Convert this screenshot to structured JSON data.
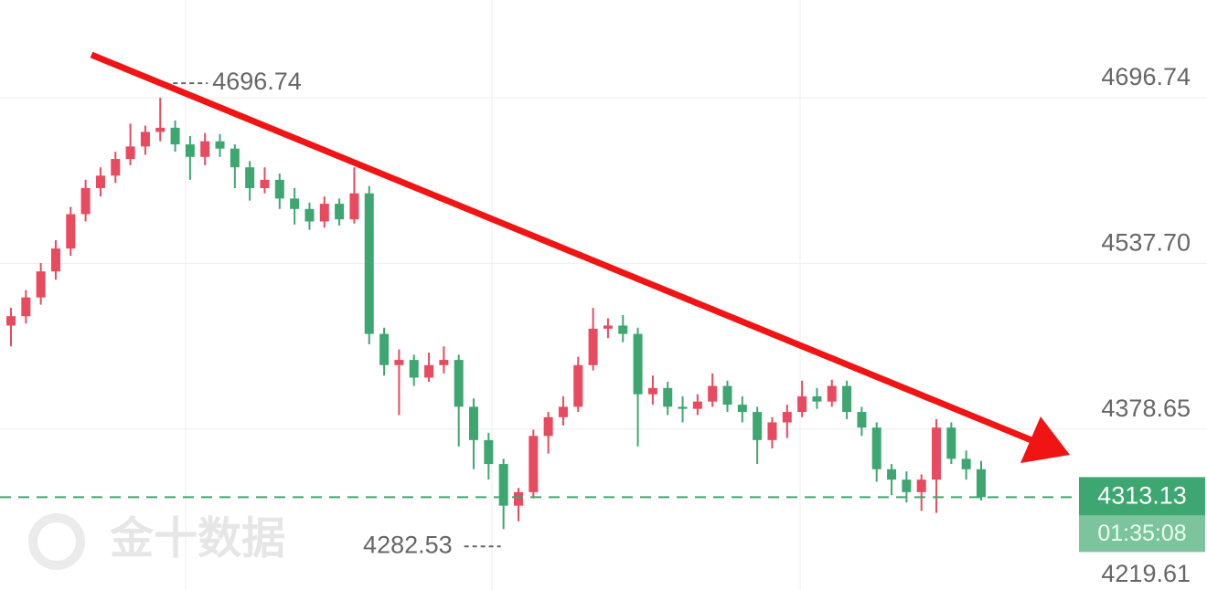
{
  "chart_data": {
    "type": "candlestick",
    "watermark": "金十数据",
    "up_color": "#e84a5f",
    "down_color": "#3ea771",
    "ylim": [
      4224.0,
      4790.7
    ],
    "yticks": [
      4696.74,
      {
        "value": 4537.7,
        "label": "4537.70"
      },
      4378.65,
      4219.61
    ],
    "grid": true,
    "max_marker": 4696.74,
    "min_marker": 4282.53,
    "last_price": 4313.13,
    "countdown": "01:35:08",
    "open": [
      4478,
      4487,
      4505,
      4530,
      4552,
      4585,
      4610,
      4622,
      4638,
      4650,
      4664,
      4668,
      4652,
      4640,
      4655,
      4648,
      4630,
      4610,
      4618,
      4600,
      4590,
      4578,
      4595,
      4580,
      4605,
      4470,
      4440,
      4445,
      4428,
      4440,
      4445,
      4400,
      4368,
      4345,
      4305,
      4318,
      4372,
      4390,
      4400,
      4440,
      4475,
      4478,
      4470,
      4412,
      4418,
      4400,
      4398,
      4405,
      4420,
      4402,
      4395,
      4368,
      4385,
      4395,
      4410,
      4405,
      4420,
      4395,
      4380,
      4340,
      4330,
      4318,
      4330,
      4380,
      4350,
      4340
    ],
    "high": [
      4495,
      4512,
      4538,
      4560,
      4592,
      4618,
      4630,
      4645,
      4672,
      4670,
      4696.74,
      4675,
      4660,
      4663,
      4662,
      4652,
      4636,
      4630,
      4624,
      4610,
      4596,
      4602,
      4600,
      4630,
      4612,
      4476,
      4455,
      4450,
      4452,
      4458,
      4450,
      4408,
      4375,
      4350,
      4322,
      4378,
      4395,
      4410,
      4448,
      4495,
      4485,
      4488,
      4476,
      4430,
      4424,
      4410,
      4412,
      4432,
      4425,
      4410,
      4400,
      4390,
      4402,
      4425,
      4418,
      4426,
      4425,
      4400,
      4385,
      4345,
      4338,
      4335,
      4388,
      4385,
      4358,
      4348
    ],
    "low": [
      4458,
      4480,
      4498,
      4522,
      4545,
      4578,
      4602,
      4615,
      4632,
      4642,
      4655,
      4645,
      4618,
      4632,
      4640,
      4610,
      4598,
      4605,
      4590,
      4575,
      4570,
      4572,
      4574,
      4576,
      4460,
      4430,
      4392,
      4420,
      4424,
      4432,
      4362,
      4340,
      4330,
      4282.53,
      4290,
      4312,
      4355,
      4382,
      4395,
      4435,
      4466,
      4462,
      4362,
      4402,
      4392,
      4385,
      4392,
      4400,
      4395,
      4385,
      4345,
      4360,
      4370,
      4390,
      4398,
      4400,
      4388,
      4372,
      4328,
      4315,
      4308,
      4300,
      4298,
      4345,
      4330,
      4310
    ],
    "close": [
      4487,
      4505,
      4530,
      4552,
      4585,
      4610,
      4622,
      4638,
      4650,
      4664,
      4668,
      4652,
      4640,
      4655,
      4648,
      4630,
      4610,
      4618,
      4600,
      4590,
      4578,
      4595,
      4580,
      4605,
      4470,
      4440,
      4445,
      4428,
      4440,
      4445,
      4400,
      4368,
      4345,
      4305,
      4318,
      4372,
      4390,
      4400,
      4440,
      4475,
      4478,
      4470,
      4412,
      4418,
      4400,
      4398,
      4405,
      4420,
      4402,
      4395,
      4368,
      4385,
      4395,
      4410,
      4405,
      4420,
      4395,
      4380,
      4340,
      4330,
      4318,
      4330,
      4380,
      4350,
      4340,
      4313.13
    ]
  }
}
